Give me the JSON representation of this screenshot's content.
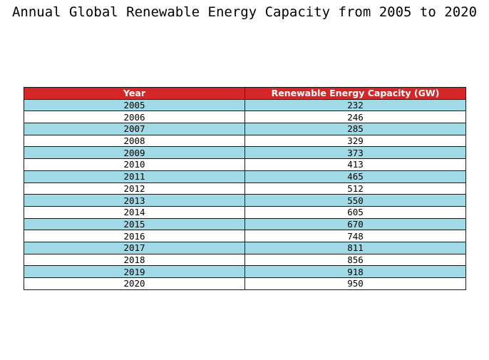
{
  "chart_data": {
    "type": "table",
    "title": "Annual Global Renewable Energy Capacity from 2005 to 2020",
    "columns": [
      "Year",
      "Renewable Energy Capacity (GW)"
    ],
    "rows": [
      [
        "2005",
        "232"
      ],
      [
        "2006",
        "246"
      ],
      [
        "2007",
        "285"
      ],
      [
        "2008",
        "329"
      ],
      [
        "2009",
        "373"
      ],
      [
        "2010",
        "413"
      ],
      [
        "2011",
        "465"
      ],
      [
        "2012",
        "512"
      ],
      [
        "2013",
        "550"
      ],
      [
        "2014",
        "605"
      ],
      [
        "2015",
        "670"
      ],
      [
        "2016",
        "748"
      ],
      [
        "2017",
        "811"
      ],
      [
        "2018",
        "856"
      ],
      [
        "2019",
        "918"
      ],
      [
        "2020",
        "950"
      ]
    ],
    "colors": {
      "header_bg": "#d62728",
      "header_text": "#ffffff",
      "row_alt_bg": "#a0dae6",
      "row_bg": "#ffffff",
      "border": "#1a1a1a"
    }
  }
}
